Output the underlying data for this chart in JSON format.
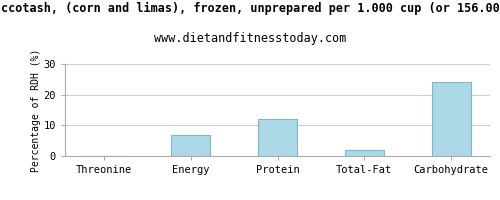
{
  "title_line1": "ccotash, (corn and limas), frozen, unprepared per 1.000 cup (or 156.00",
  "title_line2": "www.dietandfitnesstoday.com",
  "categories": [
    "Threonine",
    "Energy",
    "Protein",
    "Total-Fat",
    "Carbohydrate"
  ],
  "values": [
    0.0,
    7.0,
    12.0,
    2.0,
    24.0
  ],
  "bar_color": "#add8e6",
  "bar_edge_color": "#7ab8d0",
  "ylabel": "Percentage of RDH (%)",
  "ylim": [
    0,
    30
  ],
  "yticks": [
    0,
    10,
    20,
    30
  ],
  "grid_color": "#cccccc",
  "background_color": "#ffffff",
  "title_fontsize": 8.5,
  "subtitle_fontsize": 8.5,
  "ylabel_fontsize": 7,
  "tick_fontsize": 7.5,
  "bar_width": 0.45
}
